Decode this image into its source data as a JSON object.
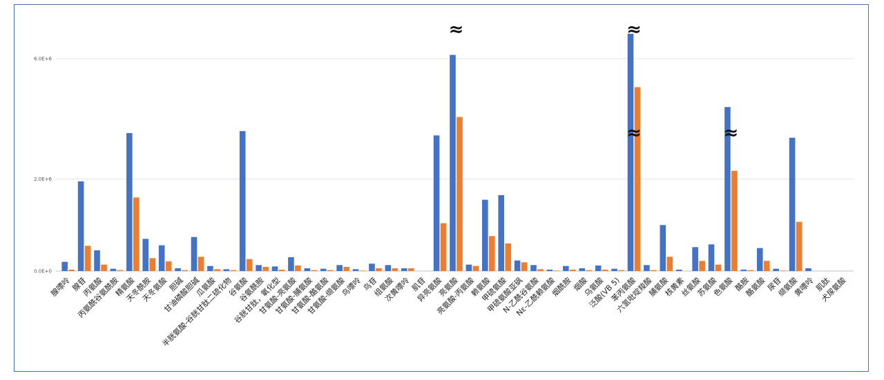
{
  "chart_data": {
    "type": "bar",
    "title": "",
    "xlabel": "",
    "ylabel": "",
    "ylim": [
      0,
      7000000
    ],
    "grid": true,
    "y_axis_break": true,
    "y_ticks": [
      {
        "value": 0,
        "label": "0.0E+0"
      },
      {
        "value": 2000000,
        "label": "2.0E+6"
      },
      {
        "value": 6000000,
        "label": "6.0E+6"
      }
    ],
    "categories": [
      "腺嘌呤",
      "腺苷",
      "丙氨酸",
      "丙氨酰谷氨酰胺",
      "精氨酸",
      "天冬酰胺",
      "天冬氨酸",
      "胆碱",
      "甘油磷酸胆碱",
      "瓜氨酸",
      "半胱氨酸-谷胱甘肽二硫化物",
      "谷氨酸",
      "谷氨酰胺",
      "谷胱甘肽，氧化型",
      "甘氨酸-亮氨酸",
      "甘氨酸-脯氨酸",
      "甘氨酸-酪氨酸",
      "甘氨酸-缬氨酸",
      "鸟嘌呤",
      "鸟苷",
      "组氨酸",
      "次黄嘌呤",
      "肌苷",
      "异亮氨酸",
      "亮氨酸",
      "亮氨酸-丙氨酸",
      "赖氨酸",
      "甲硫氨酸",
      "甲硫氨酸亚砜",
      "N-乙酰谷氨酸",
      "Nε-乙酰赖氨酸",
      "烟酰胺",
      "烟酸",
      "乌氨酸",
      "泛酸(VB 5)",
      "苯丙氨酸",
      "六氢吡啶羧酸",
      "脯氨酸",
      "核黄素",
      "丝氨酸",
      "苏氨酸",
      "色氨酸",
      "酪胺",
      "酪氨酸",
      "尿苷",
      "缬氨酸",
      "黄嘌呤",
      "肌肽",
      "犬尿氨酸"
    ],
    "series": [
      {
        "color": "#4472c4",
        "values": [
          200000,
          1950000,
          450000,
          50000,
          3000000,
          700000,
          560000,
          60000,
          740000,
          110000,
          40000,
          3080000,
          130000,
          100000,
          300000,
          60000,
          50000,
          130000,
          40000,
          160000,
          130000,
          60000,
          0,
          2950000,
          6150000,
          140000,
          1550000,
          1650000,
          230000,
          130000,
          30000,
          110000,
          60000,
          120000,
          50000,
          7000000,
          130000,
          1000000,
          30000,
          520000,
          580000,
          4050000,
          30000,
          500000,
          50000,
          2900000,
          60000,
          0,
          0
        ]
      },
      {
        "color": "#ed7d31",
        "values": [
          30000,
          550000,
          140000,
          20000,
          1600000,
          280000,
          210000,
          20000,
          310000,
          40000,
          20000,
          260000,
          90000,
          30000,
          120000,
          20000,
          20000,
          90000,
          10000,
          60000,
          60000,
          60000,
          0,
          1040000,
          3650000,
          110000,
          760000,
          600000,
          190000,
          40000,
          10000,
          30000,
          20000,
          30000,
          20000,
          4850000,
          20000,
          310000,
          0,
          220000,
          140000,
          2180000,
          20000,
          220000,
          10000,
          1070000,
          0,
          0,
          0
        ]
      }
    ],
    "break_marks": [
      {
        "category": "亮氨酸",
        "at": "top"
      },
      {
        "category": "苯丙氨酸",
        "at": "top"
      },
      {
        "category": "苯丙氨酸",
        "at": "bottom"
      },
      {
        "category": "色氨酸",
        "at": "bottom"
      }
    ],
    "break_symbol": "≈"
  }
}
